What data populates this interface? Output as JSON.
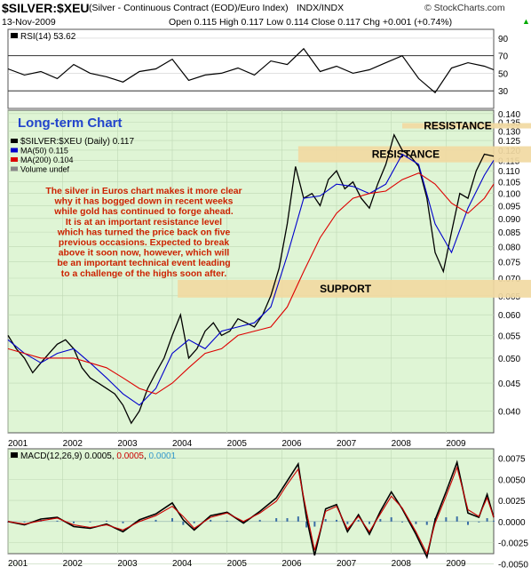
{
  "header": {
    "symbol": "$SILVER:$XEU",
    "description": "(Silver - Continuous Contract (EOD)/Euro Index)",
    "exchange": "INDX/INDX",
    "date": "13-Nov-2009",
    "ohlc": "Open 0.115  High 0.117  Low 0.114  Close 0.117  Chg +0.001 (+0.74%)",
    "credit": "© StockCharts.com",
    "up_arrow": "▲"
  },
  "chart_data": [
    {
      "type": "line",
      "panel": "rsi",
      "label": "RSI(14) 53.62",
      "ylim": [
        10,
        100
      ],
      "yticks": [
        30,
        50,
        70,
        90
      ],
      "reference_lines": [
        30,
        70
      ],
      "x_range": [
        2001.0,
        2009.87
      ],
      "series": [
        {
          "name": "RSI(14)",
          "color": "#000000",
          "x": [
            2001.0,
            2001.3,
            2001.6,
            2001.9,
            2002.2,
            2002.5,
            2002.8,
            2003.1,
            2003.4,
            2003.7,
            2004.0,
            2004.3,
            2004.6,
            2004.9,
            2005.2,
            2005.5,
            2005.8,
            2006.1,
            2006.4,
            2006.7,
            2007.0,
            2007.3,
            2007.6,
            2007.9,
            2008.2,
            2008.5,
            2008.8,
            2009.1,
            2009.4,
            2009.7,
            2009.87
          ],
          "values": [
            55,
            48,
            52,
            44,
            60,
            50,
            46,
            40,
            52,
            55,
            66,
            42,
            48,
            50,
            56,
            48,
            64,
            60,
            78,
            52,
            58,
            50,
            54,
            62,
            70,
            44,
            28,
            56,
            62,
            58,
            54
          ]
        }
      ],
      "last_value": 53.62
    },
    {
      "type": "line",
      "panel": "price",
      "title": "Long-term Chart",
      "legend": [
        "$SILVER:$XEU (Daily) 0.117",
        "MA(50) 0.115",
        "MA(200) 0.104",
        "Volume undef"
      ],
      "yscale": "log",
      "ylim": [
        0.0365,
        0.142
      ],
      "yticks": [
        0.04,
        0.045,
        0.05,
        0.055,
        0.06,
        0.065,
        0.07,
        0.075,
        0.08,
        0.085,
        0.09,
        0.095,
        0.1,
        0.105,
        0.11,
        0.115,
        0.12,
        0.125,
        0.13,
        0.135,
        0.14
      ],
      "xticks": [
        "2001",
        "2002",
        "2003",
        "2004",
        "2005",
        "2006",
        "2007",
        "2008",
        "2009"
      ],
      "x_range": [
        2001.0,
        2009.87
      ],
      "series": [
        {
          "name": "$SILVER:$XEU",
          "color": "#000000",
          "x": [
            2001.0,
            2001.15,
            2001.3,
            2001.45,
            2001.6,
            2001.75,
            2001.9,
            2002.05,
            2002.2,
            2002.35,
            2002.5,
            2002.65,
            2002.8,
            2002.95,
            2003.1,
            2003.25,
            2003.4,
            2003.55,
            2003.7,
            2003.85,
            2004.0,
            2004.15,
            2004.3,
            2004.45,
            2004.6,
            2004.75,
            2004.9,
            2005.05,
            2005.2,
            2005.35,
            2005.5,
            2005.65,
            2005.8,
            2005.95,
            2006.1,
            2006.25,
            2006.4,
            2006.55,
            2006.7,
            2006.85,
            2007.0,
            2007.15,
            2007.3,
            2007.45,
            2007.6,
            2007.75,
            2007.9,
            2008.05,
            2008.2,
            2008.35,
            2008.5,
            2008.65,
            2008.8,
            2008.95,
            2009.1,
            2009.25,
            2009.4,
            2009.55,
            2009.7,
            2009.87
          ],
          "values": [
            0.055,
            0.052,
            0.05,
            0.047,
            0.049,
            0.051,
            0.053,
            0.054,
            0.052,
            0.048,
            0.046,
            0.045,
            0.044,
            0.043,
            0.041,
            0.038,
            0.04,
            0.044,
            0.047,
            0.05,
            0.055,
            0.06,
            0.05,
            0.052,
            0.056,
            0.058,
            0.055,
            0.056,
            0.059,
            0.058,
            0.057,
            0.06,
            0.065,
            0.073,
            0.088,
            0.112,
            0.098,
            0.1,
            0.095,
            0.106,
            0.11,
            0.102,
            0.105,
            0.098,
            0.094,
            0.104,
            0.113,
            0.128,
            0.12,
            0.117,
            0.112,
            0.098,
            0.078,
            0.072,
            0.085,
            0.1,
            0.098,
            0.11,
            0.118,
            0.117
          ]
        },
        {
          "name": "MA(50)",
          "color": "#0000cc",
          "x": [
            2001.0,
            2001.3,
            2001.6,
            2001.9,
            2002.2,
            2002.5,
            2002.8,
            2003.1,
            2003.4,
            2003.7,
            2004.0,
            2004.3,
            2004.6,
            2004.9,
            2005.2,
            2005.5,
            2005.8,
            2006.1,
            2006.4,
            2006.7,
            2007.0,
            2007.3,
            2007.6,
            2007.9,
            2008.2,
            2008.5,
            2008.8,
            2009.1,
            2009.4,
            2009.7,
            2009.87
          ],
          "values": [
            0.054,
            0.051,
            0.049,
            0.051,
            0.052,
            0.049,
            0.046,
            0.043,
            0.041,
            0.044,
            0.051,
            0.054,
            0.052,
            0.056,
            0.057,
            0.058,
            0.062,
            0.077,
            0.098,
            0.099,
            0.104,
            0.103,
            0.1,
            0.104,
            0.118,
            0.113,
            0.088,
            0.078,
            0.094,
            0.108,
            0.115
          ]
        },
        {
          "name": "MA(200)",
          "color": "#dd0000",
          "x": [
            2001.0,
            2001.3,
            2001.6,
            2001.9,
            2002.2,
            2002.5,
            2002.8,
            2003.1,
            2003.4,
            2003.7,
            2004.0,
            2004.3,
            2004.6,
            2004.9,
            2005.2,
            2005.5,
            2005.8,
            2006.1,
            2006.4,
            2006.7,
            2007.0,
            2007.3,
            2007.6,
            2007.9,
            2008.2,
            2008.5,
            2008.8,
            2009.1,
            2009.4,
            2009.7,
            2009.87
          ],
          "values": [
            0.052,
            0.051,
            0.05,
            0.05,
            0.05,
            0.049,
            0.048,
            0.046,
            0.044,
            0.043,
            0.045,
            0.048,
            0.051,
            0.052,
            0.055,
            0.056,
            0.057,
            0.062,
            0.072,
            0.083,
            0.092,
            0.098,
            0.1,
            0.101,
            0.106,
            0.109,
            0.104,
            0.096,
            0.092,
            0.098,
            0.104
          ]
        }
      ],
      "zones": [
        {
          "label": "RESISTANCE",
          "low": 0.1315,
          "high": 0.1345,
          "x_from": 2008.2
        },
        {
          "label": "RESISTANCE",
          "low": 0.114,
          "high": 0.122,
          "x_from": 2006.3
        },
        {
          "label": "SUPPORT",
          "low": 0.0645,
          "high": 0.0695,
          "x_from": 2004.1
        }
      ],
      "zone_color": "#f1d9a2",
      "annotation": [
        "The silver in Euros chart makes it more clear",
        "why it has bogged down in recent weeks",
        "while gold has continued to forge ahead.",
        "It is at an important resistance level",
        "which has turned the price back on five",
        "previous occasions. Expected to break",
        "above it soon now, however, which will",
        "be an important technical event leading",
        "to a challenge of the highs soon after."
      ],
      "annotation_color": "#cc2200",
      "title_color": "#2244cc"
    },
    {
      "type": "line",
      "panel": "macd",
      "label": "MACD(12,26,9) 0.0005, 0.0005, 0.0001",
      "label_parts": [
        "MACD(12,26,9) 0.0005, ",
        "0.0005",
        ", ",
        "0.0001"
      ],
      "ylim": [
        -0.0038,
        0.0086
      ],
      "yticks": [
        "0.0075",
        "0.0050",
        "0.0025",
        "0.0000",
        "-0.0025",
        "-0.0050"
      ],
      "ytick_values": [
        0.0075,
        0.005,
        0.0025,
        0,
        -0.0025,
        -0.005
      ],
      "xticks": [
        "2001",
        "2002",
        "2003",
        "2004",
        "2005",
        "2006",
        "2007",
        "2008",
        "2009"
      ],
      "x_range": [
        2001.0,
        2009.87
      ],
      "series": [
        {
          "name": "MACD",
          "color": "#000000",
          "x": [
            2001.0,
            2001.3,
            2001.6,
            2001.9,
            2002.2,
            2002.5,
            2002.8,
            2003.1,
            2003.4,
            2003.7,
            2004.0,
            2004.2,
            2004.4,
            2004.7,
            2005.0,
            2005.3,
            2005.6,
            2005.9,
            2006.1,
            2006.3,
            2006.45,
            2006.6,
            2006.8,
            2007.0,
            2007.2,
            2007.4,
            2007.6,
            2007.8,
            2008.0,
            2008.2,
            2008.45,
            2008.65,
            2008.8,
            2009.0,
            2009.2,
            2009.4,
            2009.6,
            2009.75,
            2009.87
          ],
          "values": [
            0,
            -0.0004,
            0.0003,
            0.0005,
            -0.0006,
            -0.0008,
            -0.0003,
            -0.0012,
            0.0002,
            0.0009,
            0.0022,
            0.0002,
            -0.001,
            0.0007,
            0.0011,
            -0.0002,
            0.0012,
            0.0028,
            0.0048,
            0.0068,
            0.0005,
            -0.004,
            0.0015,
            0.002,
            -0.0012,
            0.0008,
            -0.0015,
            0.0012,
            0.0035,
            0.0015,
            -0.0015,
            -0.0042,
            0.0002,
            0.0035,
            0.007,
            0.001,
            0.0005,
            0.0032,
            0.0005
          ]
        },
        {
          "name": "Signal",
          "color": "#cc0000",
          "x": [
            2001.0,
            2001.3,
            2001.6,
            2001.9,
            2002.2,
            2002.5,
            2002.8,
            2003.1,
            2003.4,
            2003.7,
            2004.0,
            2004.2,
            2004.4,
            2004.7,
            2005.0,
            2005.3,
            2005.6,
            2005.9,
            2006.1,
            2006.3,
            2006.45,
            2006.6,
            2006.8,
            2007.0,
            2007.2,
            2007.4,
            2007.6,
            2007.8,
            2008.0,
            2008.2,
            2008.45,
            2008.65,
            2008.8,
            2009.0,
            2009.2,
            2009.4,
            2009.6,
            2009.75,
            2009.87
          ],
          "values": [
            0,
            -0.0003,
            0.0001,
            0.0004,
            -0.0004,
            -0.0007,
            -0.0004,
            -0.001,
            0,
            0.0007,
            0.0018,
            0.0006,
            -0.0008,
            0.0005,
            0.001,
            0,
            0.001,
            0.0024,
            0.0044,
            0.0062,
            0.0012,
            -0.0034,
            0.0012,
            0.0018,
            -0.0009,
            0.0006,
            -0.0012,
            0.0009,
            0.003,
            0.0016,
            -0.0012,
            -0.0038,
            -0.0002,
            0.003,
            0.0064,
            0.0014,
            0.0006,
            0.0028,
            0.0005
          ]
        },
        {
          "name": "Histogram",
          "color": "#3a6ea5",
          "x": [
            2001.0,
            2001.3,
            2001.6,
            2001.9,
            2002.2,
            2002.5,
            2002.8,
            2003.1,
            2003.4,
            2003.7,
            2004.0,
            2004.2,
            2004.4,
            2004.7,
            2005.0,
            2005.3,
            2005.6,
            2005.9,
            2006.1,
            2006.3,
            2006.45,
            2006.6,
            2006.8,
            2007.0,
            2007.2,
            2007.4,
            2007.6,
            2007.8,
            2008.0,
            2008.2,
            2008.45,
            2008.65,
            2008.8,
            2009.0,
            2009.2,
            2009.4,
            2009.6,
            2009.75,
            2009.87
          ],
          "values": [
            0,
            -0.0001,
            0.0002,
            0.0001,
            -0.0002,
            -0.0001,
            0.0001,
            -0.0002,
            0.0002,
            0.0002,
            0.0004,
            -0.0004,
            -0.0002,
            0.0002,
            0.0001,
            -0.0002,
            0.0002,
            0.0004,
            0.0004,
            0.0006,
            -0.0007,
            -0.0006,
            0.0003,
            0.0002,
            -0.0003,
            0.0002,
            -0.0003,
            0.0003,
            0.0005,
            -0.0001,
            -0.0003,
            -0.0004,
            0.0004,
            0.0005,
            0.0006,
            -0.0004,
            -0.0001,
            0.0004,
            0.0001
          ]
        }
      ]
    }
  ]
}
